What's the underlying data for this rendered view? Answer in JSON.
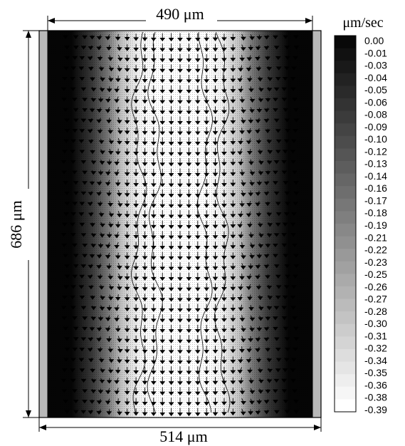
{
  "dimensions": {
    "top_width": "490 μm",
    "bottom_width": "514 μm",
    "height": "686 μm"
  },
  "colorbar": {
    "unit": "μm/sec",
    "min": -0.39,
    "max": 0.0,
    "tick_labels": [
      "0.00",
      "-0.01",
      "-0.03",
      "-0.04",
      "-0.05",
      "-0.06",
      "-0.08",
      "-0.09",
      "-0.10",
      "-0.12",
      "-0.13",
      "-0.14",
      "-0.16",
      "-0.17",
      "-0.18",
      "-0.19",
      "-0.21",
      "-0.22",
      "-0.23",
      "-0.25",
      "-0.26",
      "-0.27",
      "-0.28",
      "-0.30",
      "-0.31",
      "-0.32",
      "-0.34",
      "-0.35",
      "-0.36",
      "-0.38",
      "-0.39"
    ]
  },
  "colors": {
    "border_strip": "#b8b8b8",
    "dark_wall": "#0a0a0a",
    "center_fill": "#ffffff",
    "arrow": "#000000"
  }
}
